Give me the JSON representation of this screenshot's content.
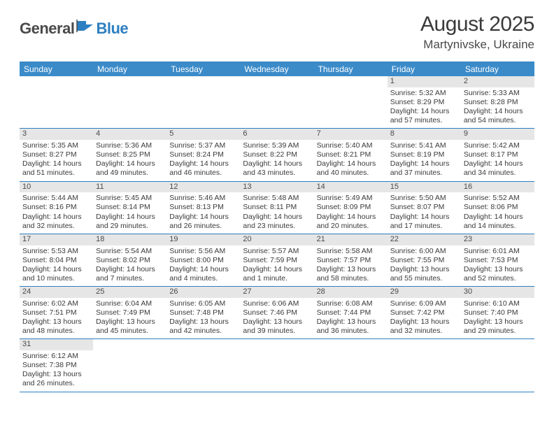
{
  "logo": {
    "part1": "General",
    "part2": "Blue"
  },
  "title": "August 2025",
  "location": "Martynivske, Ukraine",
  "colors": {
    "header_bg": "#3b8bc9",
    "rule": "#2d7fc1",
    "daynum_bg": "#e6e6e6",
    "text": "#3a3a3a"
  },
  "day_headers": [
    "Sunday",
    "Monday",
    "Tuesday",
    "Wednesday",
    "Thursday",
    "Friday",
    "Saturday"
  ],
  "weeks": [
    [
      null,
      null,
      null,
      null,
      null,
      {
        "n": "1",
        "sr": "Sunrise: 5:32 AM",
        "ss": "Sunset: 8:29 PM",
        "dl": "Daylight: 14 hours and 57 minutes."
      },
      {
        "n": "2",
        "sr": "Sunrise: 5:33 AM",
        "ss": "Sunset: 8:28 PM",
        "dl": "Daylight: 14 hours and 54 minutes."
      }
    ],
    [
      {
        "n": "3",
        "sr": "Sunrise: 5:35 AM",
        "ss": "Sunset: 8:27 PM",
        "dl": "Daylight: 14 hours and 51 minutes."
      },
      {
        "n": "4",
        "sr": "Sunrise: 5:36 AM",
        "ss": "Sunset: 8:25 PM",
        "dl": "Daylight: 14 hours and 49 minutes."
      },
      {
        "n": "5",
        "sr": "Sunrise: 5:37 AM",
        "ss": "Sunset: 8:24 PM",
        "dl": "Daylight: 14 hours and 46 minutes."
      },
      {
        "n": "6",
        "sr": "Sunrise: 5:39 AM",
        "ss": "Sunset: 8:22 PM",
        "dl": "Daylight: 14 hours and 43 minutes."
      },
      {
        "n": "7",
        "sr": "Sunrise: 5:40 AM",
        "ss": "Sunset: 8:21 PM",
        "dl": "Daylight: 14 hours and 40 minutes."
      },
      {
        "n": "8",
        "sr": "Sunrise: 5:41 AM",
        "ss": "Sunset: 8:19 PM",
        "dl": "Daylight: 14 hours and 37 minutes."
      },
      {
        "n": "9",
        "sr": "Sunrise: 5:42 AM",
        "ss": "Sunset: 8:17 PM",
        "dl": "Daylight: 14 hours and 34 minutes."
      }
    ],
    [
      {
        "n": "10",
        "sr": "Sunrise: 5:44 AM",
        "ss": "Sunset: 8:16 PM",
        "dl": "Daylight: 14 hours and 32 minutes."
      },
      {
        "n": "11",
        "sr": "Sunrise: 5:45 AM",
        "ss": "Sunset: 8:14 PM",
        "dl": "Daylight: 14 hours and 29 minutes."
      },
      {
        "n": "12",
        "sr": "Sunrise: 5:46 AM",
        "ss": "Sunset: 8:13 PM",
        "dl": "Daylight: 14 hours and 26 minutes."
      },
      {
        "n": "13",
        "sr": "Sunrise: 5:48 AM",
        "ss": "Sunset: 8:11 PM",
        "dl": "Daylight: 14 hours and 23 minutes."
      },
      {
        "n": "14",
        "sr": "Sunrise: 5:49 AM",
        "ss": "Sunset: 8:09 PM",
        "dl": "Daylight: 14 hours and 20 minutes."
      },
      {
        "n": "15",
        "sr": "Sunrise: 5:50 AM",
        "ss": "Sunset: 8:07 PM",
        "dl": "Daylight: 14 hours and 17 minutes."
      },
      {
        "n": "16",
        "sr": "Sunrise: 5:52 AM",
        "ss": "Sunset: 8:06 PM",
        "dl": "Daylight: 14 hours and 14 minutes."
      }
    ],
    [
      {
        "n": "17",
        "sr": "Sunrise: 5:53 AM",
        "ss": "Sunset: 8:04 PM",
        "dl": "Daylight: 14 hours and 10 minutes."
      },
      {
        "n": "18",
        "sr": "Sunrise: 5:54 AM",
        "ss": "Sunset: 8:02 PM",
        "dl": "Daylight: 14 hours and 7 minutes."
      },
      {
        "n": "19",
        "sr": "Sunrise: 5:56 AM",
        "ss": "Sunset: 8:00 PM",
        "dl": "Daylight: 14 hours and 4 minutes."
      },
      {
        "n": "20",
        "sr": "Sunrise: 5:57 AM",
        "ss": "Sunset: 7:59 PM",
        "dl": "Daylight: 14 hours and 1 minute."
      },
      {
        "n": "21",
        "sr": "Sunrise: 5:58 AM",
        "ss": "Sunset: 7:57 PM",
        "dl": "Daylight: 13 hours and 58 minutes."
      },
      {
        "n": "22",
        "sr": "Sunrise: 6:00 AM",
        "ss": "Sunset: 7:55 PM",
        "dl": "Daylight: 13 hours and 55 minutes."
      },
      {
        "n": "23",
        "sr": "Sunrise: 6:01 AM",
        "ss": "Sunset: 7:53 PM",
        "dl": "Daylight: 13 hours and 52 minutes."
      }
    ],
    [
      {
        "n": "24",
        "sr": "Sunrise: 6:02 AM",
        "ss": "Sunset: 7:51 PM",
        "dl": "Daylight: 13 hours and 48 minutes."
      },
      {
        "n": "25",
        "sr": "Sunrise: 6:04 AM",
        "ss": "Sunset: 7:49 PM",
        "dl": "Daylight: 13 hours and 45 minutes."
      },
      {
        "n": "26",
        "sr": "Sunrise: 6:05 AM",
        "ss": "Sunset: 7:48 PM",
        "dl": "Daylight: 13 hours and 42 minutes."
      },
      {
        "n": "27",
        "sr": "Sunrise: 6:06 AM",
        "ss": "Sunset: 7:46 PM",
        "dl": "Daylight: 13 hours and 39 minutes."
      },
      {
        "n": "28",
        "sr": "Sunrise: 6:08 AM",
        "ss": "Sunset: 7:44 PM",
        "dl": "Daylight: 13 hours and 36 minutes."
      },
      {
        "n": "29",
        "sr": "Sunrise: 6:09 AM",
        "ss": "Sunset: 7:42 PM",
        "dl": "Daylight: 13 hours and 32 minutes."
      },
      {
        "n": "30",
        "sr": "Sunrise: 6:10 AM",
        "ss": "Sunset: 7:40 PM",
        "dl": "Daylight: 13 hours and 29 minutes."
      }
    ],
    [
      {
        "n": "31",
        "sr": "Sunrise: 6:12 AM",
        "ss": "Sunset: 7:38 PM",
        "dl": "Daylight: 13 hours and 26 minutes."
      },
      null,
      null,
      null,
      null,
      null,
      null
    ]
  ]
}
